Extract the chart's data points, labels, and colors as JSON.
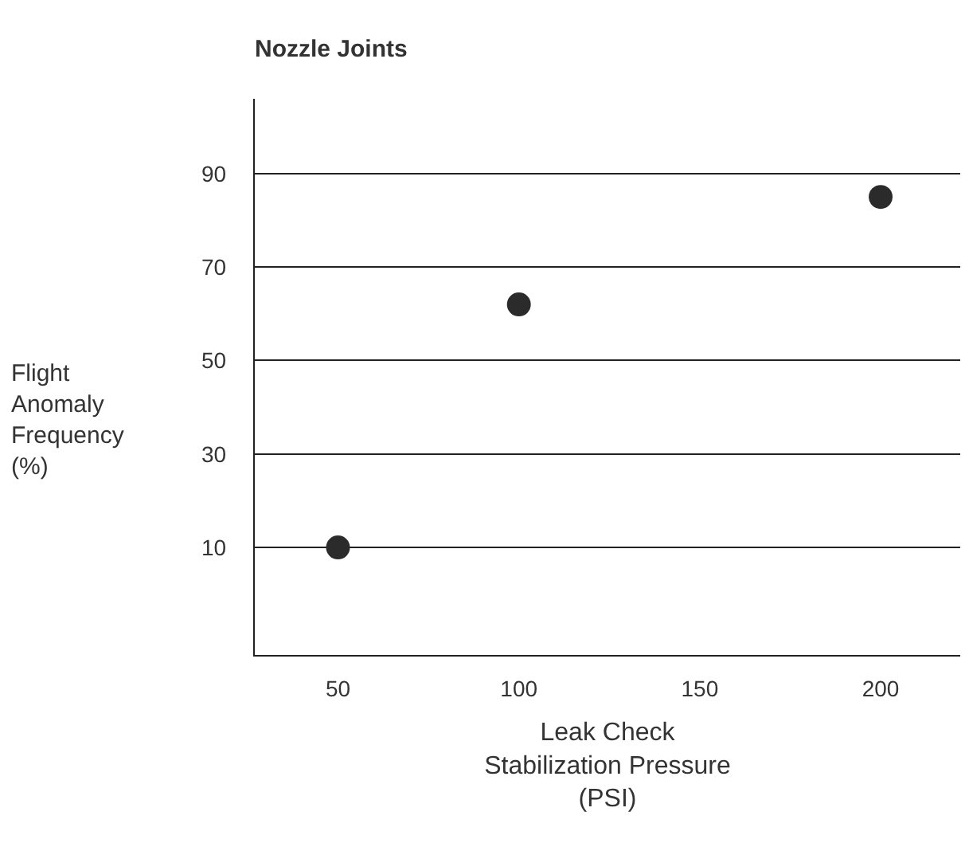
{
  "chart_data": {
    "type": "scatter",
    "title": "Nozzle Joints",
    "xlabel": "Leak Check\nStabilization Pressure\n(PSI)",
    "ylabel": "Flight\nAnomaly\nFrequency\n(%)",
    "x": [
      50,
      100,
      200
    ],
    "series": [
      {
        "color": "#2b2b2b",
        "values": [
          10,
          62,
          85
        ]
      }
    ],
    "xlim": [
      27,
      222
    ],
    "xticks": [
      50,
      100,
      150,
      200
    ],
    "ylim": [
      -13,
      106
    ],
    "yticks": [
      10,
      30,
      50,
      70,
      90
    ],
    "grid": "y",
    "marker": "circle"
  }
}
